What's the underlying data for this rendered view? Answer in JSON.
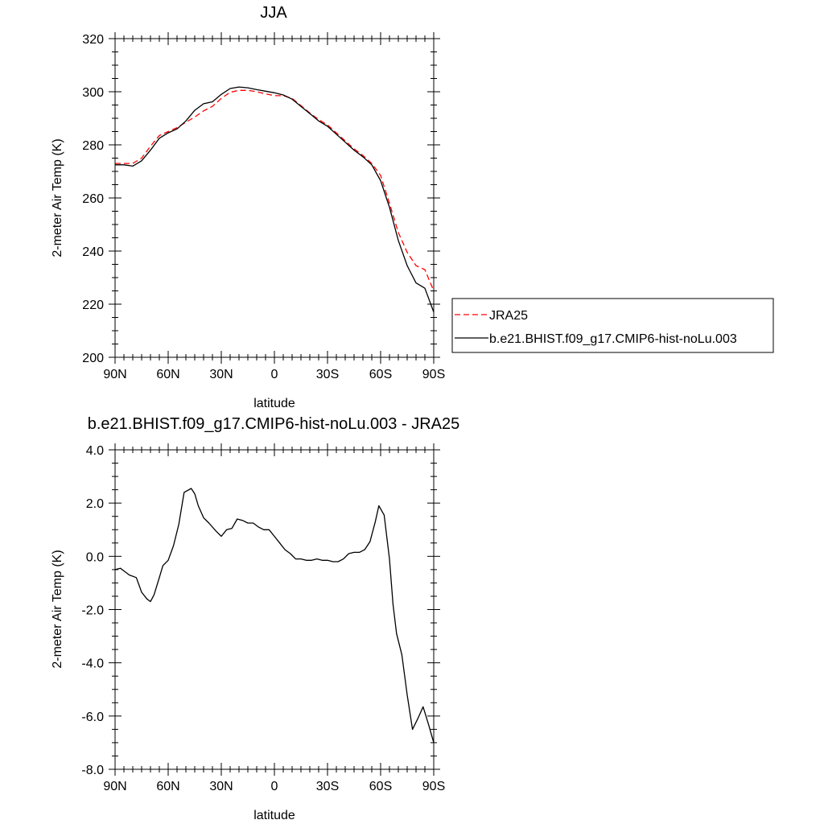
{
  "chart_data": [
    {
      "type": "line",
      "title": "JJA",
      "xlabel": "latitude",
      "ylabel": "2-meter Air Temp (K)",
      "xlim": [
        90,
        -90
      ],
      "ylim": [
        200,
        320
      ],
      "x_ticks": [
        90,
        60,
        30,
        0,
        -30,
        -60,
        -90
      ],
      "x_tick_labels": [
        "90N",
        "60N",
        "30N",
        "0",
        "30S",
        "60S",
        "90S"
      ],
      "y_ticks": [
        200,
        220,
        240,
        260,
        280,
        300,
        320
      ],
      "y_tick_labels": [
        "200",
        "220",
        "240",
        "260",
        "280",
        "300",
        "320"
      ],
      "legend_position": "right",
      "legend": [
        "JRA25",
        "b.e21.BHIST.f09_g17.CMIP6-hist-noLu.003"
      ],
      "series": [
        {
          "name": "JRA25",
          "color": "#ff0000",
          "dash": "dashed",
          "x": [
            90,
            85,
            80,
            75,
            70,
            65,
            60,
            55,
            50,
            45,
            40,
            35,
            30,
            25,
            20,
            15,
            10,
            5,
            0,
            -5,
            -10,
            -15,
            -20,
            -25,
            -30,
            -35,
            -40,
            -45,
            -50,
            -55,
            -60,
            -65,
            -70,
            -75,
            -80,
            -85,
            -90
          ],
          "y": [
            273.0,
            273.0,
            273.0,
            275.0,
            279.5,
            283.5,
            285.0,
            286.5,
            288.5,
            290.5,
            292.8,
            294.5,
            297.5,
            299.8,
            300.5,
            300.5,
            300.0,
            299.2,
            298.5,
            298.5,
            297.5,
            294.8,
            292.0,
            289.5,
            287.5,
            284.5,
            281.5,
            278.5,
            276.0,
            273.0,
            268.5,
            258.0,
            247.0,
            239.5,
            234.5,
            233.0,
            225.0
          ]
        },
        {
          "name": "b.e21.BHIST.f09_g17.CMIP6-hist-noLu.003",
          "color": "#000000",
          "dash": "solid",
          "x": [
            90,
            85,
            80,
            75,
            70,
            65,
            60,
            55,
            50,
            45,
            40,
            35,
            30,
            25,
            20,
            15,
            10,
            5,
            0,
            -5,
            -10,
            -15,
            -20,
            -25,
            -30,
            -35,
            -40,
            -45,
            -50,
            -55,
            -60,
            -65,
            -70,
            -75,
            -80,
            -85,
            -90
          ],
          "y": [
            272.5,
            272.5,
            272.0,
            274.0,
            278.0,
            282.5,
            284.5,
            286.0,
            289.0,
            293.0,
            295.5,
            296.2,
            299.0,
            301.2,
            301.8,
            301.5,
            300.8,
            300.2,
            299.6,
            298.8,
            297.2,
            294.5,
            291.8,
            289.0,
            287.0,
            284.0,
            281.0,
            278.0,
            275.5,
            272.5,
            266.5,
            256.5,
            244.0,
            234.5,
            228.0,
            226.0,
            217.0
          ]
        }
      ]
    },
    {
      "type": "line",
      "title": "b.e21.BHIST.f09_g17.CMIP6-hist-noLu.003 - JRA25",
      "xlabel": "latitude",
      "ylabel": "2-meter Air Temp (K)",
      "xlim": [
        90,
        -90
      ],
      "ylim": [
        -8,
        4
      ],
      "x_ticks": [
        90,
        60,
        30,
        0,
        -30,
        -60,
        -90
      ],
      "x_tick_labels": [
        "90N",
        "60N",
        "30N",
        "0",
        "30S",
        "60S",
        "90S"
      ],
      "y_ticks": [
        -8,
        -6,
        -4,
        -2,
        0,
        2,
        4
      ],
      "y_tick_labels": [
        "-8.0",
        "-6.0",
        "-4.0",
        "-2.0",
        "0.0",
        "2.0",
        "4.0"
      ],
      "series": [
        {
          "color": "#000000",
          "dash": "solid",
          "x": [
            90,
            87,
            85,
            82,
            78,
            75,
            72,
            70,
            68,
            65,
            63,
            60,
            57,
            54,
            51,
            47,
            45,
            43,
            40,
            37,
            33,
            30,
            27,
            24,
            21,
            18,
            15,
            12,
            9,
            6,
            3,
            0,
            -3,
            -6,
            -9,
            -12,
            -15,
            -18,
            -21,
            -24,
            -27,
            -30,
            -33,
            -36,
            -39,
            -42,
            -45,
            -48,
            -51,
            -54,
            -57,
            -59,
            -62,
            -65,
            -67,
            -69,
            -72,
            -75,
            -78,
            -81,
            -84,
            -87,
            -90
          ],
          "y": [
            -0.5,
            -0.45,
            -0.55,
            -0.7,
            -0.8,
            -1.35,
            -1.6,
            -1.7,
            -1.45,
            -0.8,
            -0.35,
            -0.15,
            0.4,
            1.2,
            2.4,
            2.55,
            2.35,
            1.9,
            1.45,
            1.25,
            0.95,
            0.75,
            1.0,
            1.05,
            1.4,
            1.35,
            1.25,
            1.25,
            1.1,
            1.0,
            1.0,
            0.75,
            0.5,
            0.25,
            0.1,
            -0.1,
            -0.1,
            -0.15,
            -0.15,
            -0.1,
            -0.15,
            -0.15,
            -0.2,
            -0.2,
            -0.1,
            0.1,
            0.15,
            0.15,
            0.25,
            0.55,
            1.3,
            1.9,
            1.55,
            -0.1,
            -1.8,
            -2.9,
            -3.7,
            -5.2,
            -6.5,
            -6.1,
            -5.65,
            -6.3,
            -7.0
          ]
        }
      ]
    }
  ]
}
